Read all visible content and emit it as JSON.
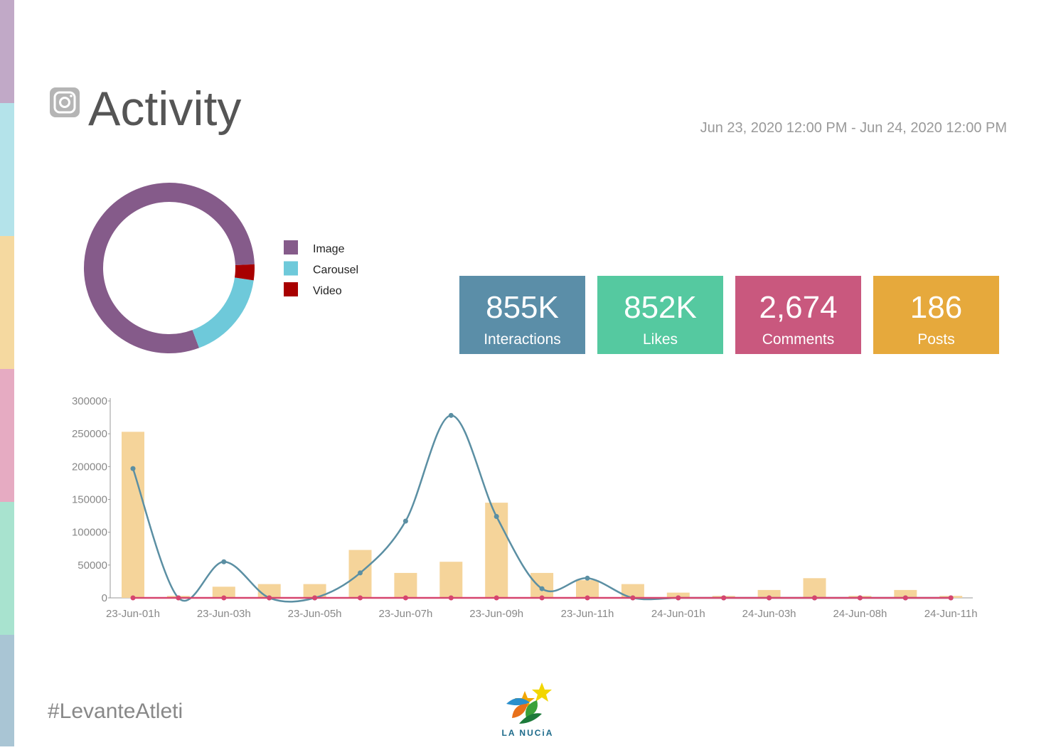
{
  "header": {
    "title": "Activity",
    "date_range": "Jun 23, 2020 12:00 PM - Jun 24, 2020 12:00 PM"
  },
  "kpis": [
    {
      "value": "855K",
      "label": "Interactions",
      "color": "#5b8ea8"
    },
    {
      "value": "852K",
      "label": "Likes",
      "color": "#55c9a0"
    },
    {
      "value": "2,674",
      "label": "Comments",
      "color": "#c9587e"
    },
    {
      "value": "186",
      "label": "Posts",
      "color": "#e6a93c"
    }
  ],
  "chart_data": [
    {
      "type": "pie",
      "donut": true,
      "categories": [
        "Image",
        "Carousel",
        "Video"
      ],
      "values": [
        80,
        17,
        3
      ],
      "colors": [
        "#855b8a",
        "#6ec9da",
        "#a80000"
      ]
    },
    {
      "type": "bar",
      "categories": [
        "23-Jun-01h",
        null,
        "23-Jun-03h",
        null,
        "23-Jun-05h",
        null,
        "23-Jun-07h",
        null,
        "23-Jun-09h",
        null,
        "23-Jun-11h",
        null,
        "24-Jun-01h",
        null,
        "24-Jun-03h",
        null,
        "24-Jun-08h",
        null,
        "24-Jun-11h"
      ],
      "series": [
        {
          "type": "bar",
          "color": "#f5d49a",
          "values": [
            253000,
            3000,
            17000,
            21000,
            21000,
            73000,
            38000,
            55000,
            145000,
            38000,
            27000,
            21000,
            8000,
            3000,
            12000,
            30000,
            3000,
            12000,
            3000
          ]
        },
        {
          "type": "line",
          "color": "#5b8fa3",
          "values": [
            197000,
            0,
            55000,
            0,
            0,
            38000,
            117000,
            278000,
            124000,
            14000,
            30000,
            0,
            0,
            0,
            0,
            0,
            0,
            0,
            0
          ]
        },
        {
          "type": "line",
          "color": "#d6456e",
          "values": [
            0,
            0,
            0,
            0,
            0,
            0,
            0,
            0,
            0,
            0,
            0,
            0,
            0,
            0,
            0,
            0,
            0,
            0,
            0
          ]
        }
      ],
      "ylim": [
        0,
        300000
      ],
      "yticks": [
        0,
        50000,
        100000,
        150000,
        200000,
        250000,
        300000
      ]
    }
  ],
  "footer": {
    "hashtag": "#LevanteAtleti",
    "logo_text": "LA NUCiA"
  }
}
